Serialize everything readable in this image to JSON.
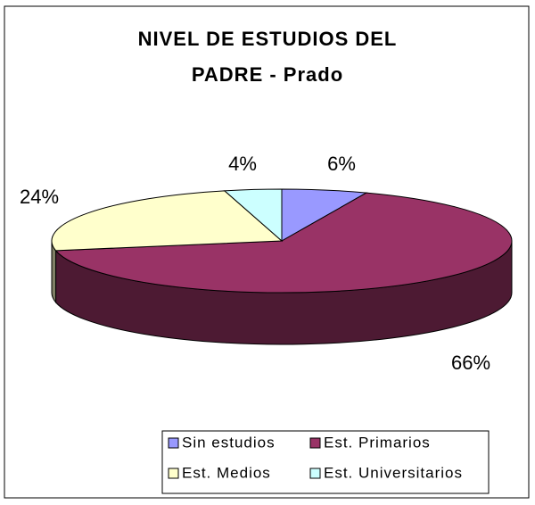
{
  "chart_data": {
    "type": "pie3d",
    "title": "NIVEL DE ESTUDIOS DEL PADRE - Prado",
    "categories": [
      "Sin estudios",
      "Est. Primarios",
      "Est. Medios",
      "Est. Universitarios"
    ],
    "values": [
      6,
      66,
      24,
      4
    ],
    "value_labels": [
      "6%",
      "66%",
      "24%",
      "4%"
    ],
    "colors": [
      "#9999FF",
      "#993366",
      "#FFFFCC",
      "#CCFFFF"
    ],
    "legend": "bottom"
  }
}
